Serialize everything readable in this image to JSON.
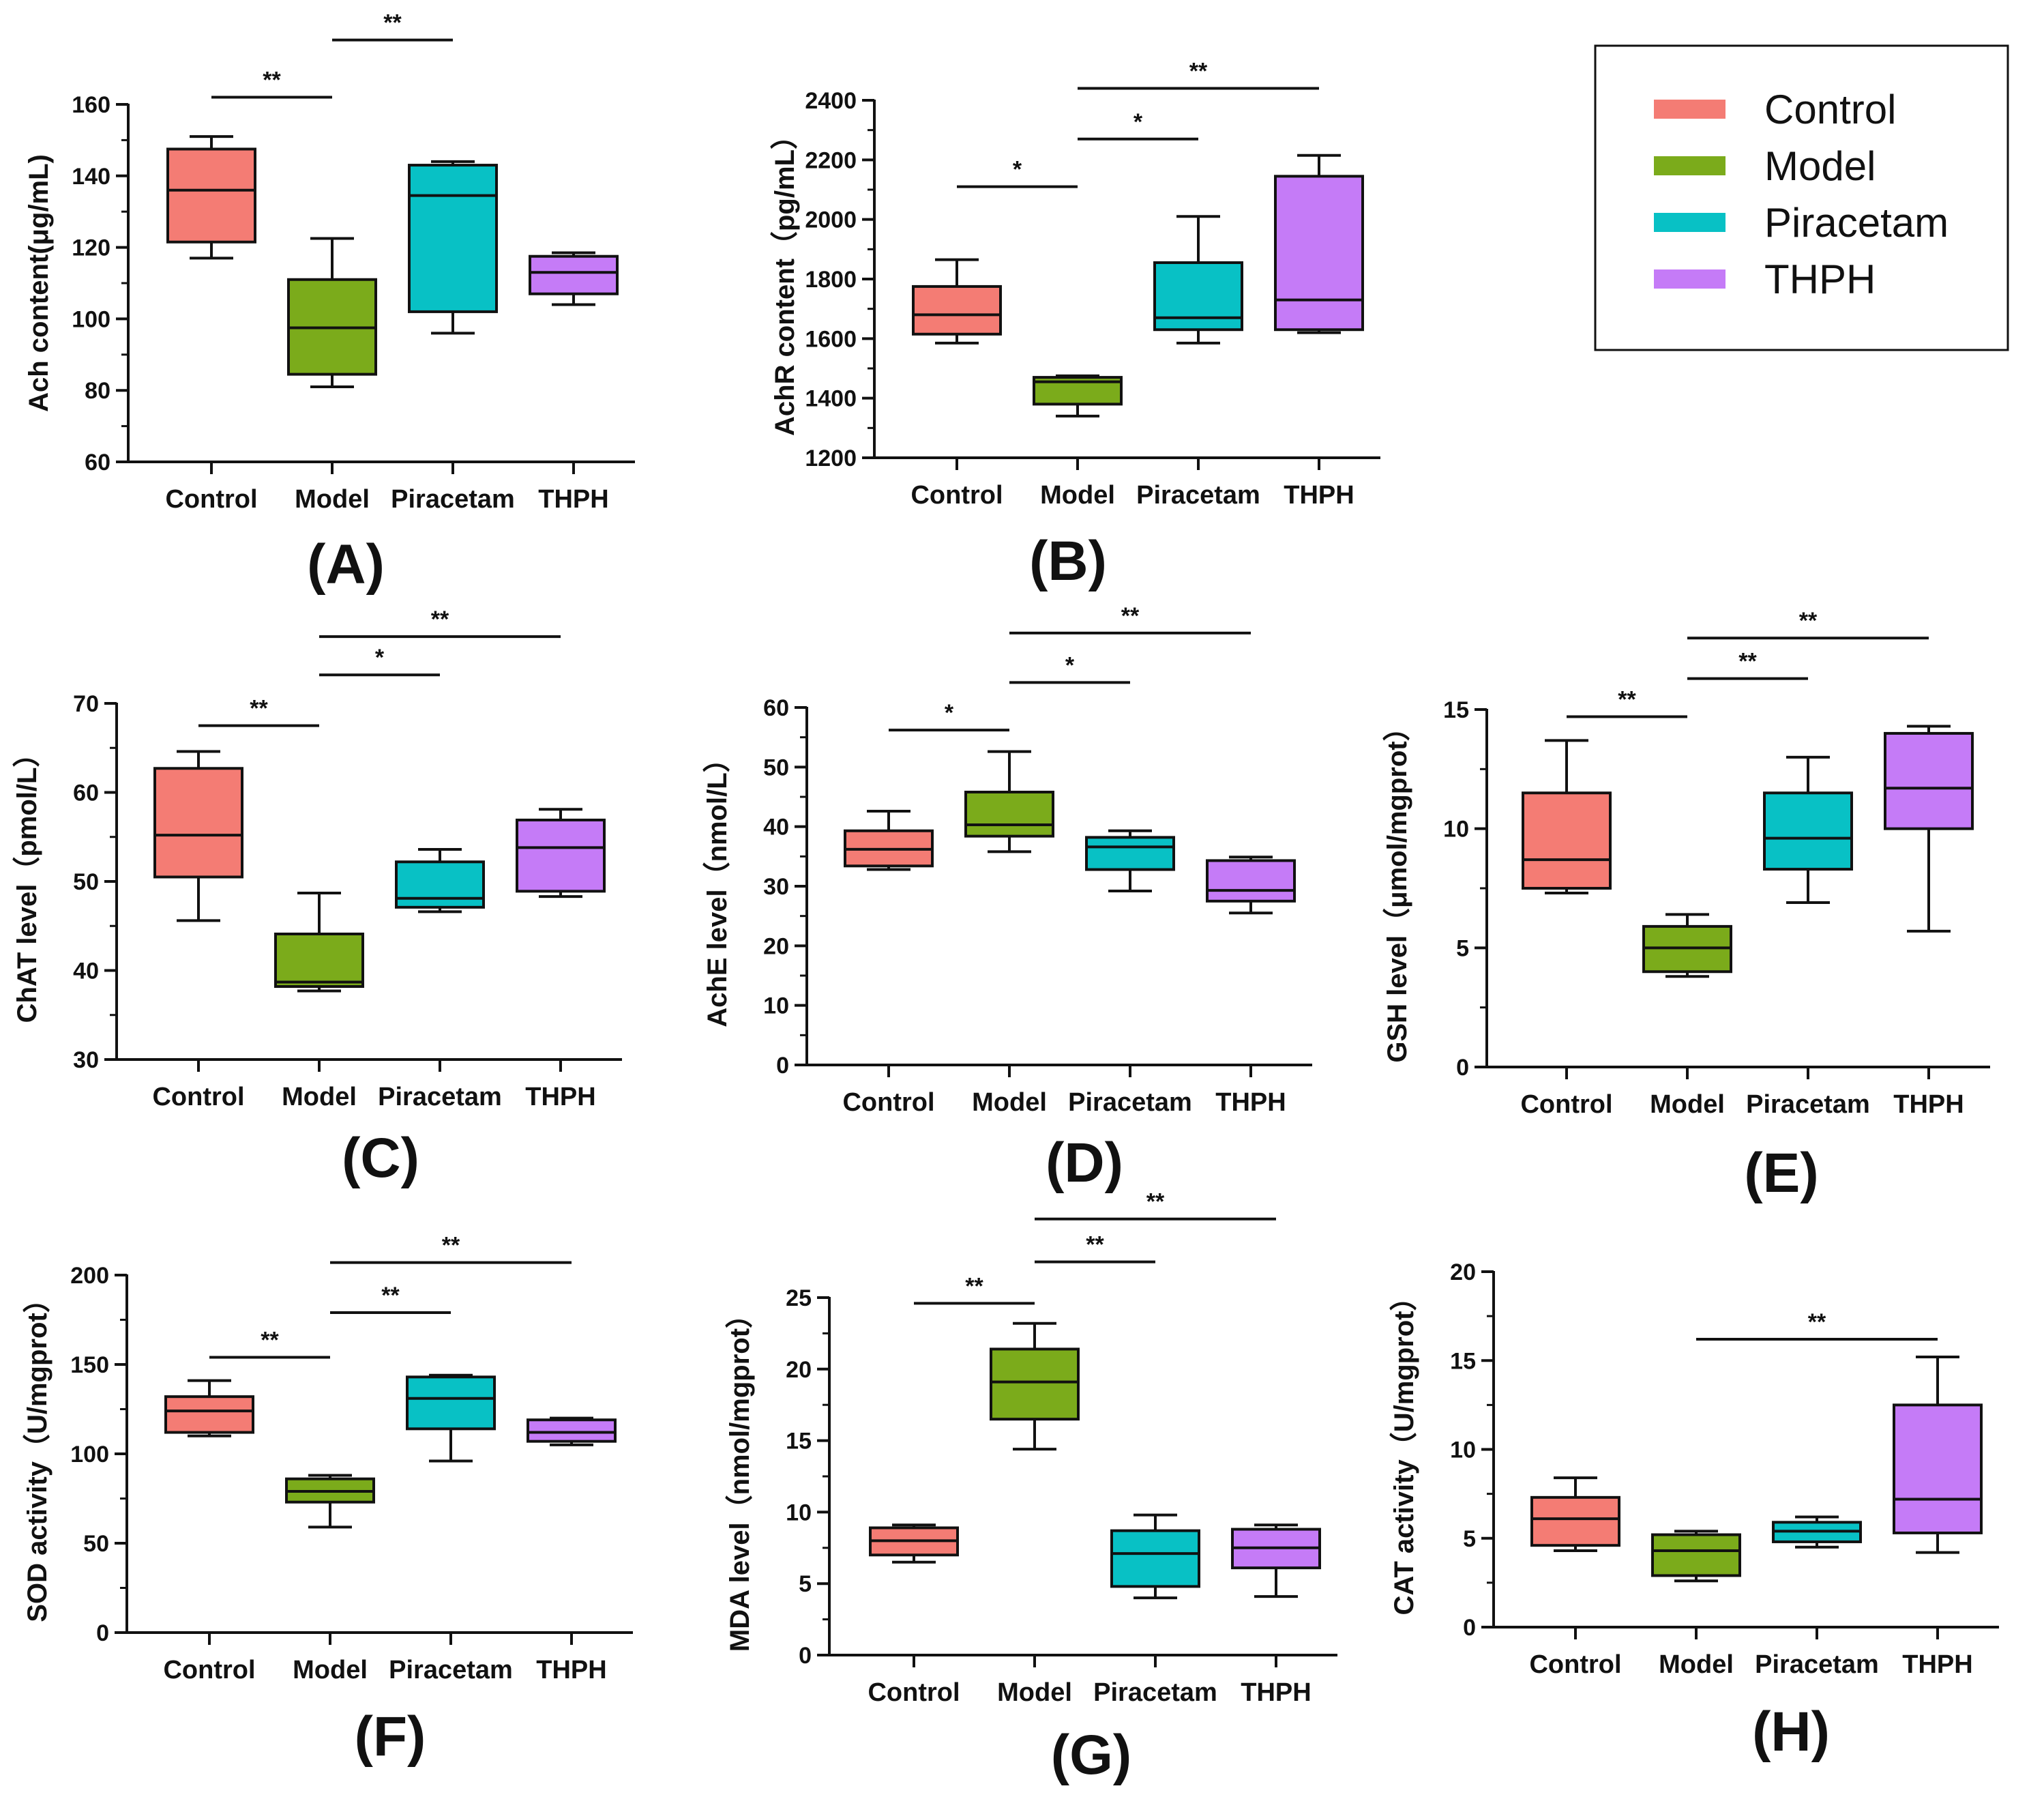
{
  "chart_data": [
    {
      "id": "A",
      "type": "box",
      "panel_label": "(A)",
      "ylabel": "Ach content(μg/mL)",
      "ylim": [
        60,
        160
      ],
      "yticks": [
        60,
        80,
        100,
        120,
        140,
        160
      ],
      "categories": [
        "Control",
        "Model",
        "Piracetam",
        "THPH"
      ],
      "boxes": [
        {
          "min": 117,
          "q1": 121.5,
          "median": 136,
          "q3": 147.5,
          "max": 151
        },
        {
          "min": 81,
          "q1": 84.5,
          "median": 97.5,
          "q3": 111,
          "max": 122.5
        },
        {
          "min": 96,
          "q1": 102,
          "median": 134.5,
          "q3": 143,
          "max": 144
        },
        {
          "min": 104,
          "q1": 107,
          "median": 113,
          "q3": 117.5,
          "max": 118.5
        }
      ],
      "significance": [
        {
          "from": 0,
          "to": 1,
          "y": 162,
          "label": "**"
        },
        {
          "from": 1,
          "to": 2,
          "y": 178,
          "label": "**"
        }
      ]
    },
    {
      "id": "B",
      "type": "box",
      "panel_label": "(B)",
      "ylabel": "AchR content（pg/mL）",
      "ylim": [
        1200,
        2400
      ],
      "yticks": [
        1200,
        1400,
        1600,
        1800,
        2000,
        2200,
        2400
      ],
      "categories": [
        "Control",
        "Model",
        "Piracetam",
        "THPH"
      ],
      "boxes": [
        {
          "min": 1585,
          "q1": 1615,
          "median": 1680,
          "q3": 1775,
          "max": 1865
        },
        {
          "min": 1340,
          "q1": 1380,
          "median": 1455,
          "q3": 1470,
          "max": 1475
        },
        {
          "min": 1585,
          "q1": 1630,
          "median": 1670,
          "q3": 1855,
          "max": 2010
        },
        {
          "min": 1620,
          "q1": 1630,
          "median": 1730,
          "q3": 2145,
          "max": 2215
        }
      ],
      "significance": [
        {
          "from": 0,
          "to": 1,
          "y": 2110,
          "label": "*"
        },
        {
          "from": 1,
          "to": 2,
          "y": 2270,
          "label": "*"
        },
        {
          "from": 1,
          "to": 3,
          "y": 2440,
          "label": "**"
        }
      ]
    },
    {
      "id": "C",
      "type": "box",
      "panel_label": "(C)",
      "ylabel": "ChAT level（pmol/L）",
      "ylim": [
        30,
        70
      ],
      "yticks": [
        30,
        40,
        50,
        60,
        70
      ],
      "categories": [
        "Control",
        "Model",
        "Piracetam",
        "THPH"
      ],
      "boxes": [
        {
          "min": 45.6,
          "q1": 50.5,
          "median": 55.2,
          "q3": 62.7,
          "max": 64.6
        },
        {
          "min": 37.7,
          "q1": 38.2,
          "median": 38.7,
          "q3": 44.1,
          "max": 48.7
        },
        {
          "min": 46.6,
          "q1": 47.1,
          "median": 48.1,
          "q3": 52.2,
          "max": 53.6
        },
        {
          "min": 48.3,
          "q1": 48.9,
          "median": 53.8,
          "q3": 56.9,
          "max": 58.1
        }
      ],
      "significance": [
        {
          "from": 0,
          "to": 1,
          "y": 67.5,
          "label": "**"
        },
        {
          "from": 1,
          "to": 2,
          "y": 73.2,
          "label": "*"
        },
        {
          "from": 1,
          "to": 3,
          "y": 77.5,
          "label": "**"
        }
      ]
    },
    {
      "id": "D",
      "type": "box",
      "panel_label": "(D)",
      "ylabel": "AchE level（nmol/L）",
      "ylim": [
        0,
        60
      ],
      "yticks": [
        0,
        10,
        20,
        30,
        40,
        50,
        60
      ],
      "categories": [
        "Control",
        "Model",
        "Piracetam",
        "THPH"
      ],
      "boxes": [
        {
          "min": 32.8,
          "q1": 33.4,
          "median": 36.2,
          "q3": 39.3,
          "max": 42.6
        },
        {
          "min": 35.8,
          "q1": 38.4,
          "median": 40.3,
          "q3": 45.8,
          "max": 52.6
        },
        {
          "min": 29.2,
          "q1": 32.8,
          "median": 36.6,
          "q3": 38.2,
          "max": 39.3
        },
        {
          "min": 25.5,
          "q1": 27.5,
          "median": 29.3,
          "q3": 34.3,
          "max": 34.9
        }
      ],
      "significance": [
        {
          "from": 0,
          "to": 1,
          "y": 56.2,
          "label": "*"
        },
        {
          "from": 1,
          "to": 2,
          "y": 64.2,
          "label": "*"
        },
        {
          "from": 1,
          "to": 3,
          "y": 72.5,
          "label": "**"
        }
      ]
    },
    {
      "id": "E",
      "type": "box",
      "panel_label": "(E)",
      "ylabel": "GSH level（μmol/mgprot）",
      "ylim": [
        0,
        15
      ],
      "yticks": [
        0,
        5,
        10,
        15
      ],
      "categories": [
        "Control",
        "Model",
        "Piracetam",
        "THPH"
      ],
      "boxes": [
        {
          "min": 7.3,
          "q1": 7.5,
          "median": 8.7,
          "q3": 11.5,
          "max": 13.7
        },
        {
          "min": 3.8,
          "q1": 4.0,
          "median": 5.0,
          "q3": 5.9,
          "max": 6.4
        },
        {
          "min": 6.9,
          "q1": 8.3,
          "median": 9.6,
          "q3": 11.5,
          "max": 13.0
        },
        {
          "min": 5.7,
          "q1": 10.0,
          "median": 11.7,
          "q3": 14.0,
          "max": 14.3
        }
      ],
      "significance": [
        {
          "from": 0,
          "to": 1,
          "y": 14.7,
          "label": "**"
        },
        {
          "from": 1,
          "to": 2,
          "y": 16.3,
          "label": "**"
        },
        {
          "from": 1,
          "to": 3,
          "y": 18.0,
          "label": "**"
        }
      ]
    },
    {
      "id": "F",
      "type": "box",
      "panel_label": "(F)",
      "ylabel": "SOD activity（U/mgprot）",
      "ylim": [
        0,
        200
      ],
      "yticks": [
        0,
        50,
        100,
        150,
        200
      ],
      "categories": [
        "Control",
        "Model",
        "Piracetam",
        "THPH"
      ],
      "boxes": [
        {
          "min": 110,
          "q1": 112,
          "median": 124,
          "q3": 132,
          "max": 141
        },
        {
          "min": 59,
          "q1": 73,
          "median": 79,
          "q3": 86,
          "max": 88
        },
        {
          "min": 96,
          "q1": 114,
          "median": 131,
          "q3": 143,
          "max": 144
        },
        {
          "min": 105,
          "q1": 107,
          "median": 112,
          "q3": 119,
          "max": 120
        }
      ],
      "significance": [
        {
          "from": 0,
          "to": 1,
          "y": 154,
          "label": "**"
        },
        {
          "from": 1,
          "to": 2,
          "y": 179,
          "label": "**"
        },
        {
          "from": 1,
          "to": 3,
          "y": 207,
          "label": "**"
        }
      ]
    },
    {
      "id": "G",
      "type": "box",
      "panel_label": "(G)",
      "ylabel": "MDA level（nmol/mgprot）",
      "ylim": [
        0,
        25
      ],
      "yticks": [
        0,
        5,
        10,
        15,
        20,
        25
      ],
      "categories": [
        "Control",
        "Model",
        "Piracetam",
        "THPH"
      ],
      "boxes": [
        {
          "min": 6.5,
          "q1": 7.0,
          "median": 8.0,
          "q3": 8.9,
          "max": 9.1
        },
        {
          "min": 14.4,
          "q1": 16.5,
          "median": 19.1,
          "q3": 21.4,
          "max": 23.2
        },
        {
          "min": 4.0,
          "q1": 4.8,
          "median": 7.1,
          "q3": 8.7,
          "max": 9.8
        },
        {
          "min": 4.1,
          "q1": 6.1,
          "median": 7.5,
          "q3": 8.8,
          "max": 9.1
        }
      ],
      "significance": [
        {
          "from": 0,
          "to": 1,
          "y": 24.6,
          "label": "**"
        },
        {
          "from": 1,
          "to": 2,
          "y": 27.5,
          "label": "**"
        },
        {
          "from": 1,
          "to": 3,
          "y": 30.5,
          "label": "**"
        }
      ]
    },
    {
      "id": "H",
      "type": "box",
      "panel_label": "(H)",
      "ylabel": "CAT activity（U/mgprot）",
      "ylim": [
        0,
        20
      ],
      "yticks": [
        0,
        5,
        10,
        15,
        20
      ],
      "categories": [
        "Control",
        "Model",
        "Piracetam",
        "THPH"
      ],
      "boxes": [
        {
          "min": 4.3,
          "q1": 4.6,
          "median": 6.1,
          "q3": 7.3,
          "max": 8.4
        },
        {
          "min": 2.6,
          "q1": 2.9,
          "median": 4.3,
          "q3": 5.2,
          "max": 5.4
        },
        {
          "min": 4.5,
          "q1": 4.8,
          "median": 5.4,
          "q3": 5.9,
          "max": 6.2
        },
        {
          "min": 4.2,
          "q1": 5.3,
          "median": 7.2,
          "q3": 12.5,
          "max": 15.2
        }
      ],
      "significance": [
        {
          "from": 1,
          "to": 3,
          "y": 16.2,
          "label": "**"
        }
      ]
    }
  ],
  "legend": {
    "items": [
      {
        "label": "Control",
        "color": "#f47c74"
      },
      {
        "label": "Model",
        "color": "#7bab1b"
      },
      {
        "label": "Piracetam",
        "color": "#08c1c5"
      },
      {
        "label": "THPH",
        "color": "#c57bf7"
      }
    ]
  },
  "colors": {
    "axis": "#111111",
    "box_stroke": "#111111"
  }
}
